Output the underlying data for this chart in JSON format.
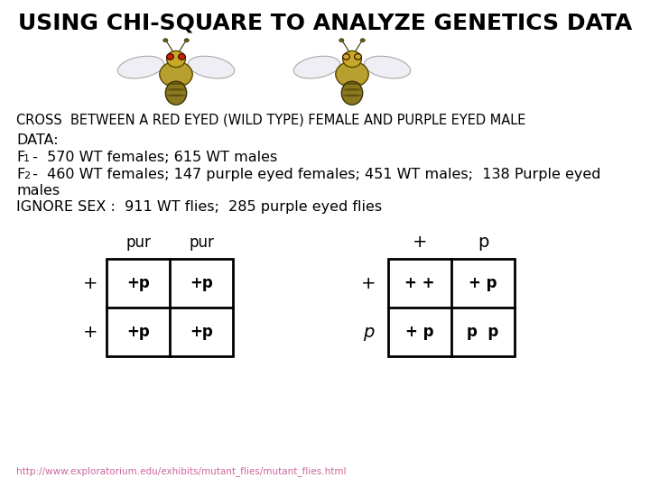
{
  "title": "USING CHI-SQUARE TO ANALYZE GENETICS DATA",
  "subtitle": "CROSS  BETWEEN A RED EYED (WILD TYPE) FEMALE AND PURPLE EYED MALE",
  "data_label": "DATA:",
  "f1_prefix": "F",
  "f1_sub": "1",
  "f1_text": " -  570 WT females; 615 WT males",
  "f2_prefix": "F",
  "f2_sub": "2",
  "f2_text": " -  460 WT females; 147 purple eyed females; 451 WT males;  138 Purple eyed",
  "f2_text2": "males",
  "ignore_line": "IGNORE SEX :  911 WT flies;  285 purple eyed flies",
  "url": "http://www.exploratorium.edu/exhibits/mutant_flies/mutant_flies.html",
  "background_color": "#ffffff",
  "title_fontsize": 18,
  "body_fontsize": 11.5,
  "small_fontsize": 7.5,
  "table1_header_cols": [
    "pur",
    "pur"
  ],
  "table1_row_labels": [
    "+",
    "+"
  ],
  "table1_cells": [
    [
      "+p",
      "+p"
    ],
    [
      "+p",
      "+p"
    ]
  ],
  "table2_header_cols": [
    "+",
    "p"
  ],
  "table2_row_labels": [
    "+",
    "p"
  ],
  "table2_cells": [
    "+ +",
    "+ p",
    "+ p",
    "p  p"
  ]
}
